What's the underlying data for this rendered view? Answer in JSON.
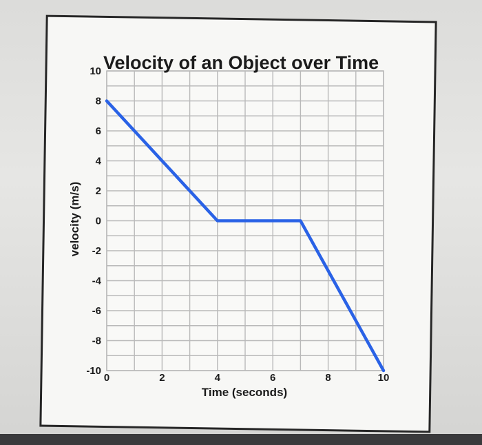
{
  "chart_data": {
    "type": "line",
    "title": "Velocity of an Object over Time",
    "xlabel": "Time (seconds)",
    "ylabel": "velocity (m/s)",
    "xlim": [
      0,
      10
    ],
    "ylim": [
      -10,
      10
    ],
    "x_ticks": [
      "0",
      "2",
      "4",
      "6",
      "8",
      "10"
    ],
    "y_ticks": [
      "10",
      "8",
      "6",
      "4",
      "2",
      "0",
      "-2",
      "-4",
      "-6",
      "-8",
      "-10"
    ],
    "grid": true,
    "series": [
      {
        "color": "#2a62e6",
        "x": [
          0,
          4,
          7,
          10
        ],
        "y": [
          8,
          0,
          0,
          -10
        ]
      }
    ]
  },
  "colors": {
    "line": "#2a62e6",
    "grid": "#b9b9b9",
    "frame": "#262626"
  }
}
